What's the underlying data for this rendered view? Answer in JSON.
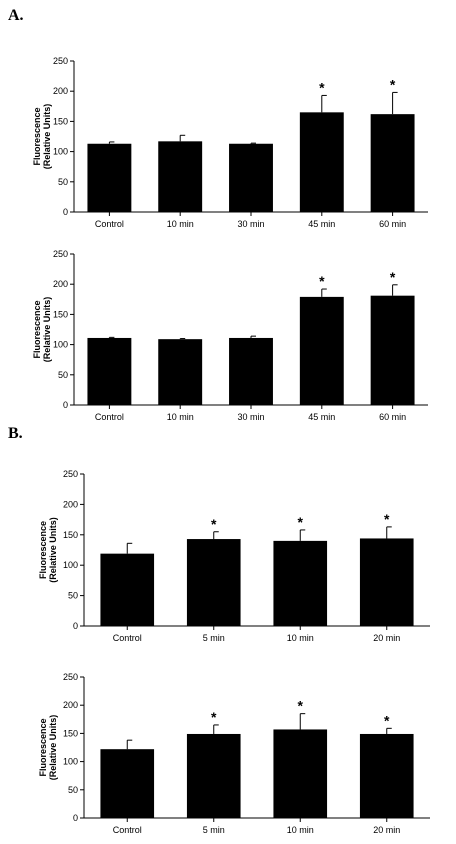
{
  "panels": [
    {
      "label": "A."
    },
    {
      "label": "B."
    }
  ],
  "chart_data": [
    {
      "type": "bar",
      "panel": "A.",
      "categories": [
        "Control",
        "10 min",
        "30 min",
        "45 min",
        "60 min"
      ],
      "values": [
        113,
        117,
        113,
        165,
        162
      ],
      "errors": [
        3,
        10,
        1,
        28,
        36
      ],
      "significant": [
        false,
        false,
        false,
        true,
        true
      ],
      "marker": "*",
      "ylabel": [
        "Fluorescence",
        "(Relative Units)"
      ],
      "ylim": [
        0,
        250
      ],
      "yticks": [
        0,
        50,
        100,
        150,
        200,
        250
      ],
      "bar_color": "#000000",
      "grid": false
    },
    {
      "type": "bar",
      "panel": "A.",
      "categories": [
        "Control",
        "10 min",
        "30 min",
        "45 min",
        "60 min"
      ],
      "values": [
        111,
        109,
        111,
        179,
        181
      ],
      "errors": [
        1,
        1,
        3,
        13,
        18
      ],
      "significant": [
        false,
        false,
        false,
        true,
        true
      ],
      "marker": "*",
      "ylabel": [
        "Fluorescence",
        "(Relative Units)"
      ],
      "ylim": [
        0,
        250
      ],
      "yticks": [
        0,
        50,
        100,
        150,
        200,
        250
      ],
      "bar_color": "#000000",
      "grid": false
    },
    {
      "type": "bar",
      "panel": "B.",
      "categories": [
        "Control",
        "5 min",
        "10 min",
        "20 min"
      ],
      "values": [
        119,
        143,
        140,
        144
      ],
      "errors": [
        17,
        12,
        18,
        19
      ],
      "significant": [
        false,
        true,
        true,
        true
      ],
      "marker": "*",
      "ylabel": [
        "Fluorescence",
        "(Relative Units)"
      ],
      "ylim": [
        0,
        250
      ],
      "yticks": [
        0,
        50,
        100,
        150,
        200,
        250
      ],
      "bar_color": "#000000",
      "grid": false
    },
    {
      "type": "bar",
      "panel": "B.",
      "categories": [
        "Control",
        "5 min",
        "10 min",
        "20 min"
      ],
      "values": [
        122,
        149,
        157,
        149
      ],
      "errors": [
        16,
        16,
        28,
        10
      ],
      "significant": [
        false,
        true,
        true,
        true
      ],
      "marker": "*",
      "ylabel": [
        "Fluorescence",
        "(Relative Units)"
      ],
      "ylim": [
        0,
        250
      ],
      "yticks": [
        0,
        50,
        100,
        150,
        200,
        250
      ],
      "bar_color": "#000000",
      "grid": false
    }
  ]
}
